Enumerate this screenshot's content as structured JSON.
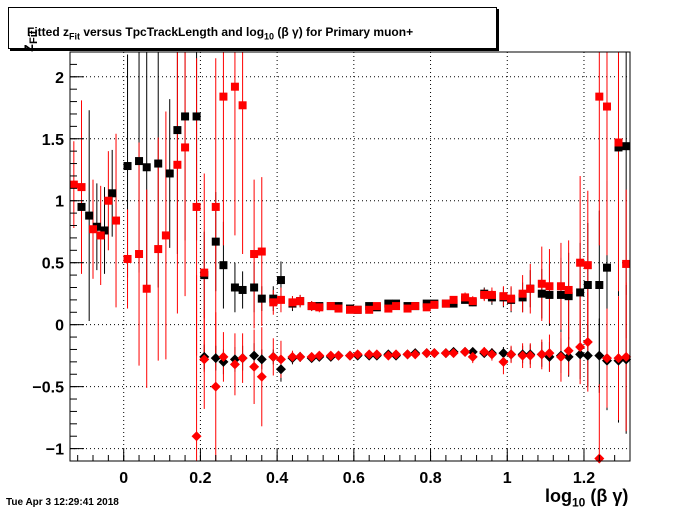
{
  "title": {
    "pre": "Fitted  z",
    "sub": "Fit",
    "post": "  versus TpcTrackLength and log",
    "sub2": "10",
    "tail": " (β γ) for Primary muon+"
  },
  "timestamp": "Tue Apr  3 12:29:41 2018",
  "xaxis_label": {
    "main": "log",
    "sub": "10",
    "tail": " (β γ)"
  },
  "yaxis_label": {
    "main": "z",
    "sub": "Fit"
  },
  "colors": {
    "black_series": "#000000",
    "red_series": "#ff0000",
    "background": "#ffffff"
  },
  "chart_data": {
    "type": "scatter",
    "xlim": [
      -0.14,
      1.32
    ],
    "ylim": [
      -1.1,
      2.2
    ],
    "grid": true,
    "x_ticks": [
      {
        "v": 0,
        "label": "0"
      },
      {
        "v": 0.2,
        "label": "0.2"
      },
      {
        "v": 0.4,
        "label": "0.4"
      },
      {
        "v": 0.6,
        "label": "0.6"
      },
      {
        "v": 0.8,
        "label": "0.8"
      },
      {
        "v": 1,
        "label": "1"
      },
      {
        "v": 1.2,
        "label": "1.2"
      }
    ],
    "y_ticks": [
      {
        "v": -1,
        "label": "−1"
      },
      {
        "v": -0.5,
        "label": "−0.5"
      },
      {
        "v": 0,
        "label": "0"
      },
      {
        "v": 0.5,
        "label": "0.5"
      },
      {
        "v": 1,
        "label": "1"
      },
      {
        "v": 1.5,
        "label": "1.5"
      },
      {
        "v": 2,
        "label": "2"
      }
    ],
    "series": [
      {
        "color": "black",
        "marker": "square",
        "points": [
          [
            -0.11,
            0.95,
            0.35
          ],
          [
            -0.09,
            0.88,
            0.85
          ],
          [
            -0.07,
            0.79,
            0.35
          ],
          [
            -0.05,
            0.76,
            0.35
          ],
          [
            -0.03,
            1.06,
            0.35
          ],
          [
            0.01,
            1.28,
            0.9
          ],
          [
            0.04,
            1.32,
            0.9
          ],
          [
            0.06,
            1.27,
            1.0
          ],
          [
            0.09,
            1.3,
            1.0
          ],
          [
            0.12,
            1.22,
            0.6
          ],
          [
            0.14,
            1.57,
            1.0
          ],
          [
            0.16,
            1.68,
            1.0
          ],
          [
            0.19,
            1.68,
            1.0
          ],
          [
            0.21,
            0.4,
            0.35
          ],
          [
            0.24,
            0.67,
            0.4
          ],
          [
            0.26,
            0.48,
            0.35
          ],
          [
            0.29,
            0.3,
            0.2
          ],
          [
            0.31,
            0.28,
            0.15
          ],
          [
            0.34,
            0.3,
            0.2
          ],
          [
            0.36,
            0.21,
            0.1
          ],
          [
            0.39,
            0.21,
            0.1
          ],
          [
            0.41,
            0.36,
            0.15
          ],
          [
            0.44,
            0.17,
            0.06
          ],
          [
            0.46,
            0.19,
            0.05
          ],
          [
            0.49,
            0.15,
            0.04
          ],
          [
            0.51,
            0.15,
            0.03
          ],
          [
            0.54,
            0.15,
            0.03
          ],
          [
            0.56,
            0.15,
            0.03
          ],
          [
            0.59,
            0.13,
            0.02
          ],
          [
            0.61,
            0.12,
            0.02
          ],
          [
            0.64,
            0.15,
            0.02
          ],
          [
            0.66,
            0.14,
            0.02
          ],
          [
            0.69,
            0.17,
            0.02
          ],
          [
            0.71,
            0.17,
            0.02
          ],
          [
            0.74,
            0.15,
            0.02
          ],
          [
            0.76,
            0.15,
            0.02
          ],
          [
            0.79,
            0.17,
            0.02
          ],
          [
            0.81,
            0.17,
            0.02
          ],
          [
            0.84,
            0.17,
            0.02
          ],
          [
            0.86,
            0.17,
            0.02
          ],
          [
            0.89,
            0.2,
            0.03
          ],
          [
            0.91,
            0.18,
            0.03
          ],
          [
            0.94,
            0.25,
            0.05
          ],
          [
            0.96,
            0.22,
            0.06
          ],
          [
            0.99,
            0.22,
            0.08
          ],
          [
            1.01,
            0.2,
            0.1
          ],
          [
            1.04,
            0.22,
            0.12
          ],
          [
            1.06,
            0.29,
            0.15
          ],
          [
            1.09,
            0.25,
            0.2
          ],
          [
            1.11,
            0.24,
            0.25
          ],
          [
            1.14,
            0.24,
            0.3
          ],
          [
            1.16,
            0.23,
            0.35
          ],
          [
            1.19,
            0.26,
            0.4
          ],
          [
            1.21,
            0.32,
            0.5
          ],
          [
            1.24,
            0.32,
            0.6
          ],
          [
            1.26,
            0.46,
            0.7
          ],
          [
            1.29,
            1.43,
            1.2
          ],
          [
            1.31,
            1.44,
            1.2
          ]
        ]
      },
      {
        "color": "red",
        "marker": "square",
        "points": [
          [
            -0.13,
            1.13,
            0.35
          ],
          [
            -0.11,
            1.11,
            0.7
          ],
          [
            -0.08,
            0.77,
            0.4
          ],
          [
            -0.06,
            0.72,
            0.4
          ],
          [
            -0.04,
            1.0,
            0.4
          ],
          [
            -0.02,
            0.84,
            0.7
          ],
          [
            0.01,
            0.53,
            0.4
          ],
          [
            0.04,
            0.57,
            0.9
          ],
          [
            0.06,
            0.29,
            0.8
          ],
          [
            0.09,
            0.61,
            0.9
          ],
          [
            0.11,
            0.72,
            1.0
          ],
          [
            0.14,
            1.29,
            1.2
          ],
          [
            0.16,
            1.43,
            1.2
          ],
          [
            0.19,
            0.95,
            1.2
          ],
          [
            0.21,
            0.42,
            0.8
          ],
          [
            0.24,
            0.95,
            1.2
          ],
          [
            0.26,
            1.84,
            1.2
          ],
          [
            0.29,
            1.92,
            1.2
          ],
          [
            0.31,
            1.77,
            1.2
          ],
          [
            0.34,
            0.57,
            0.6
          ],
          [
            0.36,
            0.59,
            0.6
          ],
          [
            0.39,
            0.18,
            0.1
          ],
          [
            0.41,
            0.2,
            0.1
          ],
          [
            0.44,
            0.18,
            0.05
          ],
          [
            0.46,
            0.19,
            0.05
          ],
          [
            0.49,
            0.15,
            0.04
          ],
          [
            0.51,
            0.14,
            0.04
          ],
          [
            0.54,
            0.15,
            0.03
          ],
          [
            0.56,
            0.13,
            0.03
          ],
          [
            0.59,
            0.12,
            0.02
          ],
          [
            0.61,
            0.12,
            0.02
          ],
          [
            0.64,
            0.12,
            0.02
          ],
          [
            0.66,
            0.15,
            0.02
          ],
          [
            0.69,
            0.13,
            0.02
          ],
          [
            0.71,
            0.15,
            0.02
          ],
          [
            0.74,
            0.13,
            0.02
          ],
          [
            0.76,
            0.15,
            0.02
          ],
          [
            0.79,
            0.14,
            0.02
          ],
          [
            0.81,
            0.16,
            0.03
          ],
          [
            0.84,
            0.17,
            0.03
          ],
          [
            0.86,
            0.2,
            0.03
          ],
          [
            0.89,
            0.22,
            0.04
          ],
          [
            0.91,
            0.19,
            0.04
          ],
          [
            0.94,
            0.24,
            0.05
          ],
          [
            0.96,
            0.24,
            0.06
          ],
          [
            0.99,
            0.23,
            0.08
          ],
          [
            1.01,
            0.21,
            0.1
          ],
          [
            1.04,
            0.25,
            0.15
          ],
          [
            1.06,
            0.29,
            0.2
          ],
          [
            1.09,
            0.33,
            0.3
          ],
          [
            1.11,
            0.31,
            0.3
          ],
          [
            1.14,
            0.31,
            0.35
          ],
          [
            1.16,
            0.28,
            0.4
          ],
          [
            1.19,
            0.5,
            0.7
          ],
          [
            1.21,
            0.48,
            0.6
          ],
          [
            1.24,
            1.84,
            1.2
          ],
          [
            1.26,
            1.76,
            1.2
          ],
          [
            1.29,
            1.47,
            1.2
          ],
          [
            1.31,
            0.49,
            0.6
          ]
        ]
      },
      {
        "color": "black",
        "marker": "diamond",
        "points": [
          [
            0.21,
            -0.26,
            0.1
          ],
          [
            0.24,
            -0.27,
            0.1
          ],
          [
            0.26,
            -0.3,
            0.1
          ],
          [
            0.29,
            -0.28,
            0.1
          ],
          [
            0.31,
            -0.27,
            0.1
          ],
          [
            0.34,
            -0.25,
            0.1
          ],
          [
            0.36,
            -0.28,
            0.08
          ],
          [
            0.39,
            -0.26,
            0.06
          ],
          [
            0.41,
            -0.36,
            0.1
          ],
          [
            0.44,
            -0.27,
            0.05
          ],
          [
            0.46,
            -0.26,
            0.04
          ],
          [
            0.49,
            -0.27,
            0.03
          ],
          [
            0.51,
            -0.26,
            0.03
          ],
          [
            0.54,
            -0.26,
            0.02
          ],
          [
            0.56,
            -0.25,
            0.02
          ],
          [
            0.59,
            -0.25,
            0.02
          ],
          [
            0.61,
            -0.25,
            0.02
          ],
          [
            0.64,
            -0.25,
            0.02
          ],
          [
            0.66,
            -0.25,
            0.02
          ],
          [
            0.69,
            -0.24,
            0.02
          ],
          [
            0.71,
            -0.25,
            0.02
          ],
          [
            0.74,
            -0.24,
            0.02
          ],
          [
            0.76,
            -0.23,
            0.02
          ],
          [
            0.79,
            -0.23,
            0.02
          ],
          [
            0.81,
            -0.23,
            0.02
          ],
          [
            0.84,
            -0.23,
            0.02
          ],
          [
            0.86,
            -0.22,
            0.02
          ],
          [
            0.89,
            -0.22,
            0.03
          ],
          [
            0.91,
            -0.22,
            0.03
          ],
          [
            0.94,
            -0.23,
            0.03
          ],
          [
            0.96,
            -0.23,
            0.04
          ],
          [
            0.99,
            -0.23,
            0.05
          ],
          [
            1.01,
            -0.24,
            0.06
          ],
          [
            1.04,
            -0.24,
            0.07
          ],
          [
            1.06,
            -0.24,
            0.08
          ],
          [
            1.09,
            -0.24,
            0.1
          ],
          [
            1.11,
            -0.26,
            0.12
          ],
          [
            1.14,
            -0.25,
            0.14
          ],
          [
            1.16,
            -0.26,
            0.16
          ],
          [
            1.19,
            -0.24,
            0.2
          ],
          [
            1.21,
            -0.25,
            0.25
          ],
          [
            1.24,
            -0.25,
            0.3
          ],
          [
            1.26,
            -0.29,
            0.4
          ],
          [
            1.29,
            -0.29,
            0.5
          ],
          [
            1.31,
            -0.28,
            0.6
          ]
        ]
      },
      {
        "color": "red",
        "marker": "diamond",
        "points": [
          [
            0.19,
            -0.9,
            1.3
          ],
          [
            0.21,
            -0.28,
            0.4
          ],
          [
            0.24,
            -0.5,
            0.6
          ],
          [
            0.26,
            -0.26,
            0.2
          ],
          [
            0.29,
            -0.32,
            0.25
          ],
          [
            0.31,
            -0.27,
            0.2
          ],
          [
            0.34,
            -0.34,
            0.3
          ],
          [
            0.36,
            -0.42,
            0.4
          ],
          [
            0.39,
            -0.26,
            0.15
          ],
          [
            0.41,
            -0.28,
            0.15
          ],
          [
            0.44,
            -0.26,
            0.05
          ],
          [
            0.46,
            -0.26,
            0.04
          ],
          [
            0.49,
            -0.26,
            0.03
          ],
          [
            0.51,
            -0.25,
            0.03
          ],
          [
            0.54,
            -0.25,
            0.02
          ],
          [
            0.56,
            -0.25,
            0.02
          ],
          [
            0.59,
            -0.25,
            0.02
          ],
          [
            0.61,
            -0.24,
            0.02
          ],
          [
            0.64,
            -0.24,
            0.02
          ],
          [
            0.66,
            -0.24,
            0.02
          ],
          [
            0.69,
            -0.25,
            0.02
          ],
          [
            0.71,
            -0.24,
            0.02
          ],
          [
            0.74,
            -0.24,
            0.02
          ],
          [
            0.76,
            -0.24,
            0.02
          ],
          [
            0.79,
            -0.23,
            0.02
          ],
          [
            0.81,
            -0.23,
            0.02
          ],
          [
            0.84,
            -0.23,
            0.02
          ],
          [
            0.86,
            -0.23,
            0.02
          ],
          [
            0.89,
            -0.22,
            0.03
          ],
          [
            0.91,
            -0.26,
            0.05
          ],
          [
            0.94,
            -0.22,
            0.04
          ],
          [
            0.96,
            -0.24,
            0.05
          ],
          [
            0.99,
            -0.3,
            0.1
          ],
          [
            1.01,
            -0.24,
            0.07
          ],
          [
            1.04,
            -0.25,
            0.1
          ],
          [
            1.06,
            -0.25,
            0.1
          ],
          [
            1.09,
            -0.24,
            0.12
          ],
          [
            1.11,
            -0.23,
            0.15
          ],
          [
            1.14,
            -0.26,
            0.2
          ],
          [
            1.16,
            -0.21,
            0.2
          ],
          [
            1.19,
            -0.18,
            0.3
          ],
          [
            1.21,
            -0.14,
            0.4
          ],
          [
            1.24,
            -1.08,
            0.6
          ],
          [
            1.26,
            -0.27,
            0.4
          ],
          [
            1.29,
            -0.27,
            0.5
          ],
          [
            1.31,
            -0.26,
            0.6
          ]
        ]
      }
    ]
  }
}
